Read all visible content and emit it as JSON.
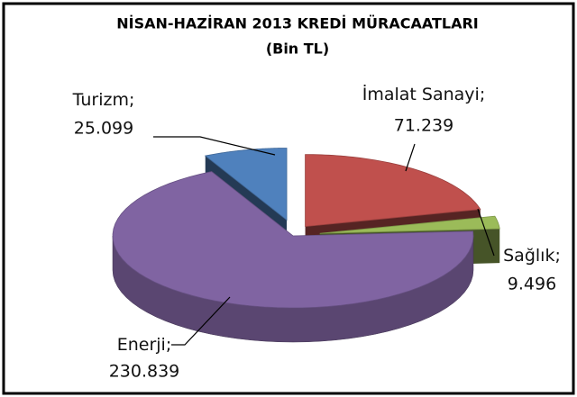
{
  "chart_data": {
    "type": "pie3d",
    "title": "NİSAN-HAZİRAN 2013 KREDİ MÜRACAATLARI",
    "subtitle": "(Bin TL)",
    "categories": [
      "İmalat Sanayi",
      "Sağlık",
      "Enerji",
      "Turizm"
    ],
    "values": [
      71.239,
      9.496,
      230.839,
      25.099
    ],
    "colors": [
      "#c0504d",
      "#9bbb59",
      "#8064a2",
      "#4f81bd"
    ],
    "label_separator": ";"
  }
}
